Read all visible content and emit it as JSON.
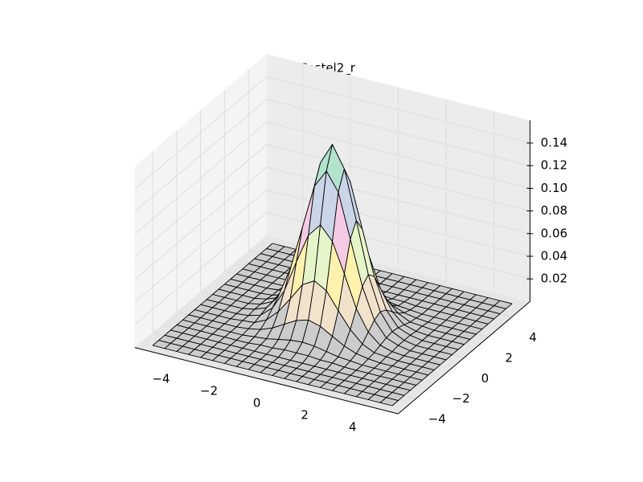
{
  "chart_data": {
    "type": "surface3d",
    "title": "Pastel2_r",
    "x": [
      -5,
      -4.5,
      -4,
      -3.5,
      -3,
      -2.5,
      -2,
      -1.5,
      -1,
      -0.5,
      0,
      0.5,
      1,
      1.5,
      2,
      2.5,
      3,
      3.5,
      4,
      4.5,
      5
    ],
    "y": [
      -5,
      -4.5,
      -4,
      -3.5,
      -3,
      -2.5,
      -2,
      -1.5,
      -1,
      -0.5,
      0,
      0.5,
      1,
      1.5,
      2,
      2.5,
      3,
      3.5,
      4,
      4.5,
      5
    ],
    "z": [
      [
        0,
        0,
        0,
        0,
        0,
        0,
        0,
        0,
        0,
        0,
        0,
        0,
        0,
        0,
        0,
        0,
        0,
        0,
        0,
        0,
        0
      ],
      [
        0,
        0,
        0,
        0,
        0,
        0,
        0,
        0,
        0,
        0,
        0,
        0,
        0,
        0,
        0,
        0,
        0,
        0,
        0,
        0,
        0
      ],
      [
        0,
        0,
        0,
        0,
        0,
        0,
        0,
        0,
        0,
        0,
        0,
        0,
        0,
        0,
        0,
        0,
        0,
        0,
        0,
        0,
        0
      ],
      [
        0,
        0,
        0,
        0,
        0,
        0,
        0,
        0,
        0,
        0,
        0,
        0,
        0,
        0,
        0,
        0,
        0,
        0,
        0,
        0,
        0
      ],
      [
        0,
        0,
        0,
        0,
        0,
        0,
        0,
        0.001,
        0.001,
        0.002,
        0.002,
        0.002,
        0.001,
        0.001,
        0,
        0,
        0,
        0,
        0,
        0,
        0
      ],
      [
        0,
        0,
        0,
        0,
        0,
        0,
        0.001,
        0.002,
        0.004,
        0.006,
        0.007,
        0.006,
        0.004,
        0.002,
        0.001,
        0,
        0,
        0,
        0,
        0,
        0
      ],
      [
        0,
        0,
        0,
        0,
        0,
        0.001,
        0.003,
        0.007,
        0.013,
        0.019,
        0.022,
        0.019,
        0.013,
        0.007,
        0.003,
        0.001,
        0,
        0,
        0,
        0,
        0
      ],
      [
        0,
        0,
        0,
        0,
        0.001,
        0.002,
        0.007,
        0.017,
        0.031,
        0.046,
        0.052,
        0.046,
        0.031,
        0.017,
        0.007,
        0.002,
        0.001,
        0,
        0,
        0,
        0
      ],
      [
        0,
        0,
        0,
        0,
        0.001,
        0.004,
        0.013,
        0.031,
        0.059,
        0.085,
        0.097,
        0.085,
        0.059,
        0.031,
        0.013,
        0.004,
        0.001,
        0,
        0,
        0,
        0
      ],
      [
        0,
        0,
        0,
        0,
        0.002,
        0.006,
        0.019,
        0.046,
        0.085,
        0.124,
        0.14,
        0.124,
        0.085,
        0.046,
        0.019,
        0.006,
        0.002,
        0,
        0,
        0,
        0
      ],
      [
        0,
        0,
        0,
        0,
        0.002,
        0.007,
        0.022,
        0.052,
        0.097,
        0.14,
        0.159,
        0.14,
        0.097,
        0.052,
        0.022,
        0.007,
        0.002,
        0,
        0,
        0,
        0
      ],
      [
        0,
        0,
        0,
        0,
        0.002,
        0.006,
        0.019,
        0.046,
        0.085,
        0.124,
        0.14,
        0.124,
        0.085,
        0.046,
        0.019,
        0.006,
        0.002,
        0,
        0,
        0,
        0
      ],
      [
        0,
        0,
        0,
        0,
        0.001,
        0.004,
        0.013,
        0.031,
        0.059,
        0.085,
        0.097,
        0.085,
        0.059,
        0.031,
        0.013,
        0.004,
        0.001,
        0,
        0,
        0,
        0
      ],
      [
        0,
        0,
        0,
        0,
        0.001,
        0.002,
        0.007,
        0.017,
        0.031,
        0.046,
        0.052,
        0.046,
        0.031,
        0.017,
        0.007,
        0.002,
        0.001,
        0,
        0,
        0,
        0
      ],
      [
        0,
        0,
        0,
        0,
        0,
        0.001,
        0.003,
        0.007,
        0.013,
        0.019,
        0.022,
        0.019,
        0.013,
        0.007,
        0.003,
        0.001,
        0,
        0,
        0,
        0,
        0
      ],
      [
        0,
        0,
        0,
        0,
        0,
        0,
        0.001,
        0.002,
        0.004,
        0.006,
        0.007,
        0.006,
        0.004,
        0.002,
        0.001,
        0,
        0,
        0,
        0,
        0,
        0
      ],
      [
        0,
        0,
        0,
        0,
        0,
        0,
        0,
        0.001,
        0.001,
        0.002,
        0.002,
        0.002,
        0.001,
        0.001,
        0,
        0,
        0,
        0,
        0,
        0,
        0
      ],
      [
        0,
        0,
        0,
        0,
        0,
        0,
        0,
        0,
        0,
        0,
        0,
        0,
        0,
        0,
        0,
        0,
        0,
        0,
        0,
        0,
        0
      ],
      [
        0,
        0,
        0,
        0,
        0,
        0,
        0,
        0,
        0,
        0,
        0,
        0,
        0,
        0,
        0,
        0,
        0,
        0,
        0,
        0,
        0
      ],
      [
        0,
        0,
        0,
        0,
        0,
        0,
        0,
        0,
        0,
        0,
        0,
        0,
        0,
        0,
        0,
        0,
        0,
        0,
        0,
        0,
        0
      ],
      [
        0,
        0,
        0,
        0,
        0,
        0,
        0,
        0,
        0,
        0,
        0,
        0,
        0,
        0,
        0,
        0,
        0,
        0,
        0,
        0,
        0
      ]
    ],
    "colormap": [
      "#cccccc",
      "#f1e2cc",
      "#fff2ae",
      "#e6f5c9",
      "#f4cae4",
      "#cbd5e8",
      "#fdcdac",
      "#b3e2cd"
    ],
    "xlim": [
      -5.5,
      5.5
    ],
    "ylim": [
      -5.5,
      5.5
    ],
    "zlim": [
      0,
      0.16
    ],
    "xticks": [
      {
        "value": -4,
        "label": "−4"
      },
      {
        "value": -2,
        "label": "−2"
      },
      0,
      2,
      4
    ],
    "yticks": [
      {
        "value": -4,
        "label": "−4"
      },
      {
        "value": -2,
        "label": "−2"
      },
      0,
      2,
      4
    ],
    "zticks": [
      0.02,
      0.04,
      0.06,
      0.08,
      {
        "value": 0.1,
        "label": "0.10"
      },
      0.12,
      0.14
    ],
    "grid": true
  }
}
